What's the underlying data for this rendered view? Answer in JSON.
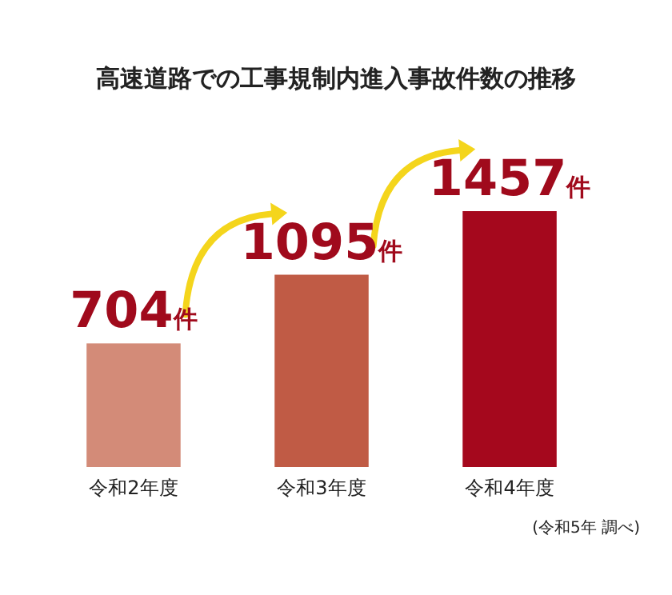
{
  "chart_data": {
    "type": "bar",
    "title": "高速道路での工事規制内進入事故件数の推移",
    "categories": [
      "令和2年度",
      "令和3年度",
      "令和4年度"
    ],
    "values": [
      704,
      1095,
      1457
    ],
    "colors": [
      "#d38b78",
      "#c05b45",
      "#a5081d"
    ],
    "value_labels": [
      "704件",
      "1095件",
      "1457件"
    ],
    "annotations": [
      "(令和5年 調べ)"
    ]
  }
}
